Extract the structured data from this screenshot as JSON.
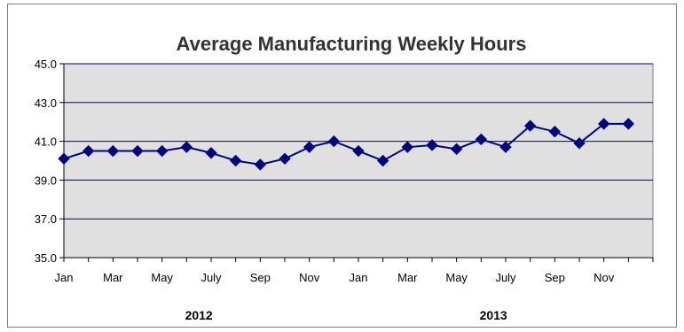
{
  "chart_data": {
    "type": "line",
    "title": "Average Manufacturing Weekly Hours",
    "xlabel": "",
    "ylabel": "",
    "ylim": [
      35.0,
      45.0
    ],
    "y_ticks": [
      "35.0",
      "37.0",
      "39.0",
      "41.0",
      "43.0",
      "45.0"
    ],
    "grid": true,
    "legend": "none",
    "x": [
      "Jan 2012",
      "Feb 2012",
      "Mar 2012",
      "Apr 2012",
      "May 2012",
      "Jun 2012",
      "Jul 2012",
      "Aug 2012",
      "Sep 2012",
      "Oct 2012",
      "Nov 2012",
      "Dec 2012",
      "Jan 2013",
      "Feb 2013",
      "Mar 2013",
      "Apr 2013",
      "May 2013",
      "Jun 2013",
      "Jul 2013",
      "Aug 2013",
      "Sep 2013",
      "Oct 2013",
      "Nov 2013",
      "Dec 2013"
    ],
    "x_tick_labels": [
      "Jan",
      "",
      "Mar",
      "",
      "May",
      "",
      "July",
      "",
      "Sep",
      "",
      "Nov",
      "",
      "Jan",
      "",
      "Mar",
      "",
      "May",
      "",
      "July",
      "",
      "Sep",
      "",
      "Nov",
      ""
    ],
    "group_labels": [
      "2012",
      "2013"
    ],
    "series": [
      {
        "values": [
          40.1,
          40.5,
          40.5,
          40.5,
          40.5,
          40.7,
          40.4,
          40.0,
          39.8,
          40.1,
          40.7,
          41.0,
          40.5,
          40.0,
          40.7,
          40.8,
          40.6,
          41.1,
          40.7,
          41.8,
          41.5,
          40.9,
          41.9,
          41.9
        ]
      }
    ]
  },
  "colors": {
    "plot_background": "#e0e0e0",
    "gridline": "#000080",
    "series": "#000080",
    "text": "#000000"
  }
}
